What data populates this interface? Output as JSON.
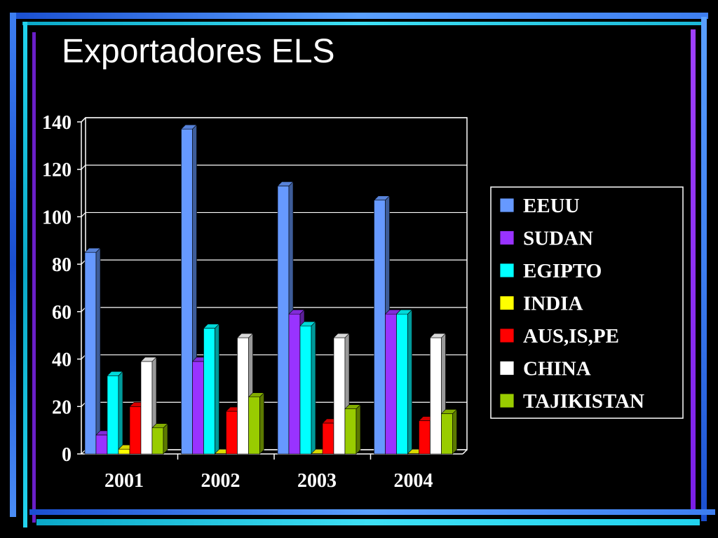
{
  "slide": {
    "title": "Exportadores ELS"
  },
  "colors": {
    "background": "#000000",
    "frame_blue": "#3d7ef0",
    "frame_purple": "#9b30ff",
    "frame_cyan": "#22d3ee",
    "axis": "#ffffff"
  },
  "chart_data": {
    "type": "bar",
    "style": "3d-clustered-column",
    "title": "",
    "xlabel": "",
    "ylabel": "",
    "categories": [
      "2001",
      "2002",
      "2003",
      "2004"
    ],
    "ylim": [
      0,
      140
    ],
    "yticks": [
      0,
      20,
      40,
      60,
      80,
      100,
      120,
      140
    ],
    "grid": true,
    "legend_position": "right",
    "series": [
      {
        "name": "EEUU",
        "color": "#6699ff",
        "values": [
          85,
          137,
          113,
          107
        ]
      },
      {
        "name": "SUDAN",
        "color": "#9933ff",
        "values": [
          8,
          39,
          59,
          59
        ]
      },
      {
        "name": "EGIPTO",
        "color": "#00ffff",
        "values": [
          33,
          53,
          54,
          59
        ]
      },
      {
        "name": "INDIA",
        "color": "#ffff00",
        "values": [
          2,
          0,
          0,
          0
        ]
      },
      {
        "name": "AUS,IS,PE",
        "color": "#ff0000",
        "values": [
          20,
          18,
          13,
          14
        ]
      },
      {
        "name": "CHINA",
        "color": "#ffffff",
        "values": [
          39,
          49,
          49,
          49
        ]
      },
      {
        "name": "TAJIKISTAN",
        "color": "#99cc00",
        "values": [
          11,
          24,
          19,
          17
        ]
      }
    ]
  }
}
